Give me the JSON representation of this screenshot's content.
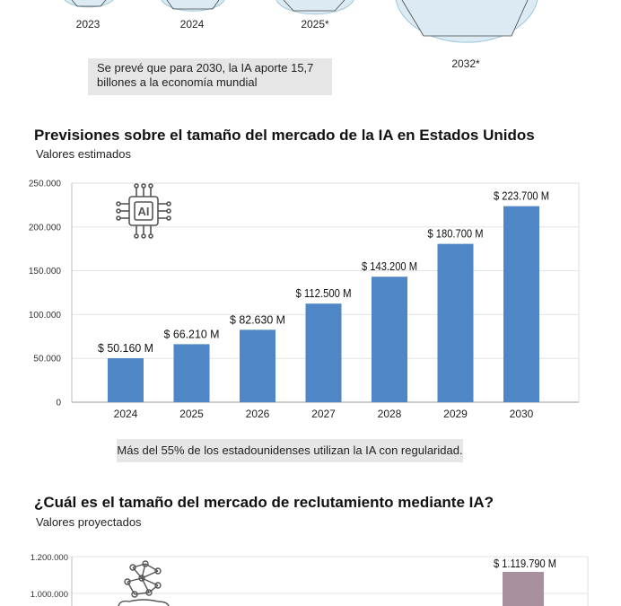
{
  "top_section": {
    "years": [
      "2023",
      "2024",
      "2025*",
      "2032*"
    ],
    "note": "Se prevé que para 2030, la IA aporte 15,7 billones a la economía mundial"
  },
  "us_market": {
    "title": "Previsiones sobre el tamaño del mercado de la IA en Estados Unidos",
    "subtitle": "Valores estimados",
    "icon": "ai-chip-icon",
    "note": "Más del 55% de los estadounidenses utilizan la IA con regularidad."
  },
  "recruitment": {
    "title": "¿Cuál es el tamaño del mercado de reclutamiento mediante IA?",
    "subtitle": "Valores proyectados",
    "icon": "neural-network-icon"
  },
  "chart_data": [
    {
      "type": "bar",
      "title": "Previsiones sobre el tamaño del mercado de la IA en Estados Unidos",
      "subtitle": "Valores estimados",
      "categories": [
        "2024",
        "2025",
        "2026",
        "2027",
        "2028",
        "2029",
        "2030"
      ],
      "values": [
        50160,
        66210,
        82630,
        112500,
        143200,
        180700,
        223700
      ],
      "data_labels": [
        "$ 50.160 M",
        "$ 66.210 M",
        "$ 82.630 M",
        "$ 112.500 M",
        "$ 143.200 M",
        "$ 180.700 M",
        "$ 223.700 M"
      ],
      "yticks": [
        "0",
        "50.000",
        "100.000",
        "150.000",
        "200.000",
        "250.000"
      ],
      "ylim": [
        0,
        250000
      ],
      "grid": true,
      "color": "#4e86c6"
    },
    {
      "type": "bar",
      "title": "¿Cuál es el tamaño del mercado de reclutamiento mediante IA?",
      "subtitle": "Valores proyectados",
      "visible_yticks": [
        "1.000.000",
        "1.200.000"
      ],
      "visible_ytick_values": [
        1000000,
        1200000
      ],
      "visible_bar_value": 1119790,
      "visible_bar_label": "$ 1.119.790 M",
      "color": "#a8909f"
    }
  ]
}
